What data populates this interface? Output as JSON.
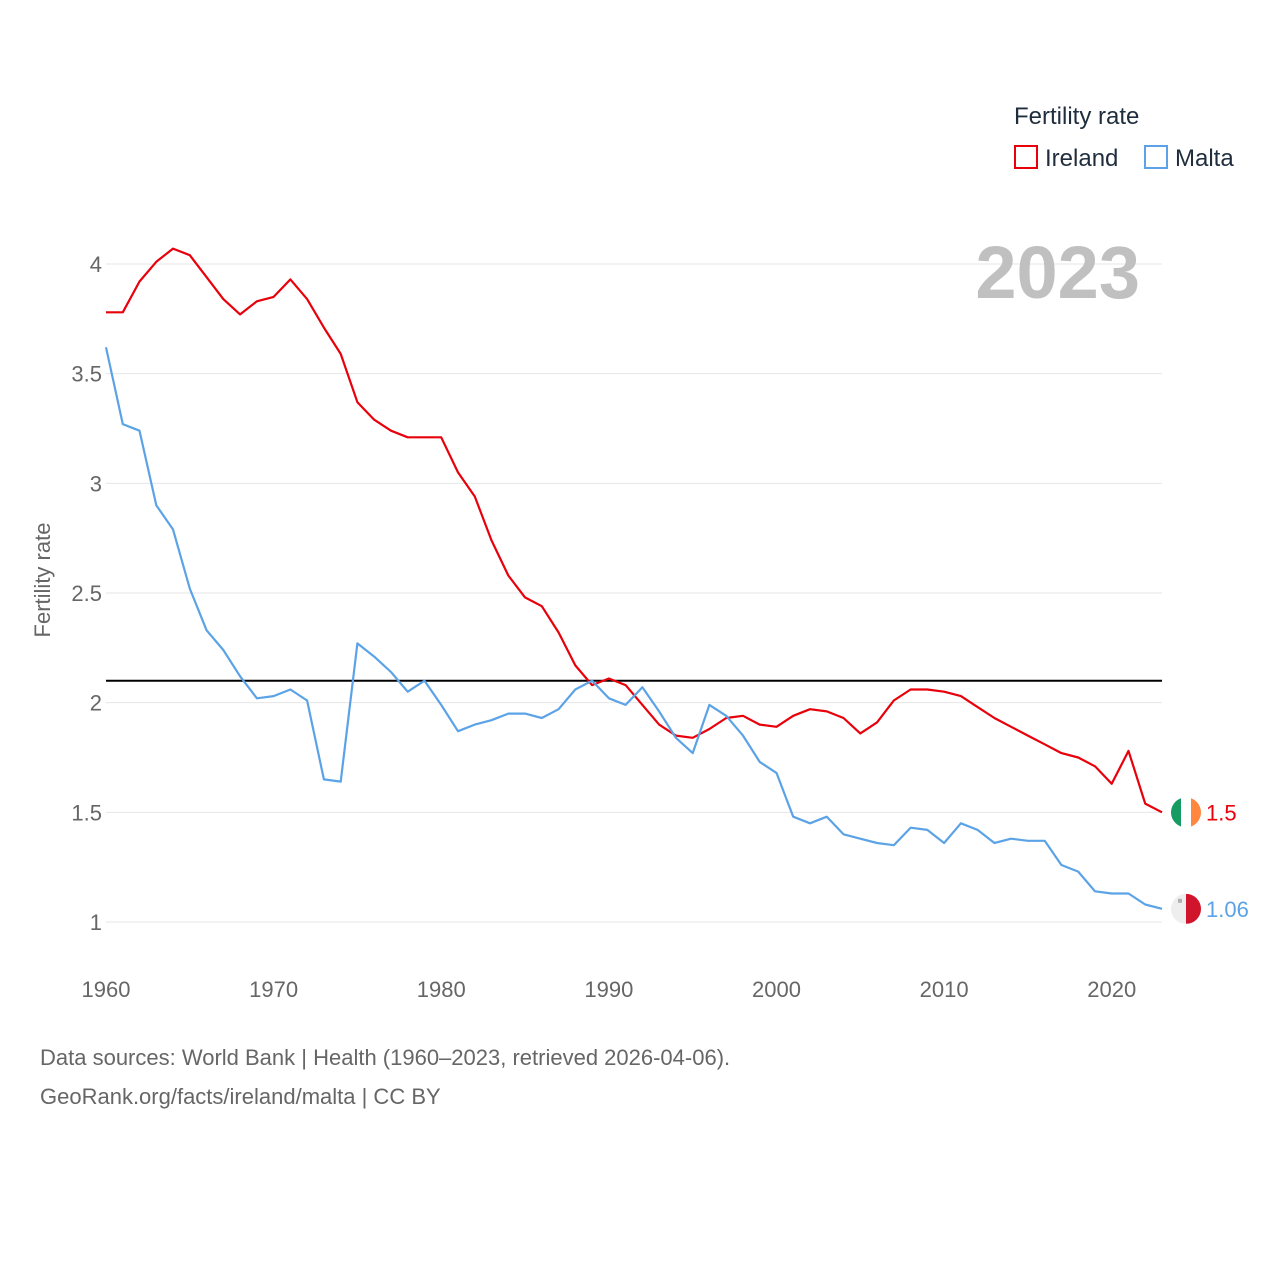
{
  "chart_data": {
    "type": "line",
    "ylabel": "Fertility rate",
    "legend_title": "Fertility rate",
    "legend_position": "top-right",
    "current_year_label": "2023",
    "ylim": [
      0.75,
      4.3
    ],
    "xlim": [
      1960,
      2023
    ],
    "y_ticks": [
      "1",
      "1.5",
      "2",
      "2.5",
      "3",
      "3.5",
      "4"
    ],
    "x_ticks": [
      "1960",
      "1970",
      "1980",
      "1990",
      "2000",
      "2010",
      "2020"
    ],
    "reference_line": 2.1,
    "grid": true,
    "x": [
      1960,
      1961,
      1962,
      1963,
      1964,
      1965,
      1966,
      1967,
      1968,
      1969,
      1970,
      1971,
      1972,
      1973,
      1974,
      1975,
      1976,
      1977,
      1978,
      1979,
      1980,
      1981,
      1982,
      1983,
      1984,
      1985,
      1986,
      1987,
      1988,
      1989,
      1990,
      1991,
      1992,
      1993,
      1994,
      1995,
      1996,
      1997,
      1998,
      1999,
      2000,
      2001,
      2002,
      2003,
      2004,
      2005,
      2006,
      2007,
      2008,
      2009,
      2010,
      2011,
      2012,
      2013,
      2014,
      2015,
      2016,
      2017,
      2018,
      2019,
      2020,
      2021,
      2022,
      2023
    ],
    "series": [
      {
        "name": "Ireland",
        "color": "#e8000b",
        "flag": "ireland-flag",
        "end_label": "1.5",
        "values": [
          3.78,
          3.78,
          3.92,
          4.01,
          4.07,
          4.04,
          3.94,
          3.84,
          3.77,
          3.83,
          3.85,
          3.93,
          3.84,
          3.71,
          3.59,
          3.37,
          3.29,
          3.24,
          3.21,
          3.21,
          3.21,
          3.05,
          2.94,
          2.74,
          2.58,
          2.48,
          2.44,
          2.32,
          2.17,
          2.08,
          2.11,
          2.08,
          1.99,
          1.9,
          1.85,
          1.84,
          1.88,
          1.93,
          1.94,
          1.9,
          1.89,
          1.94,
          1.97,
          1.96,
          1.93,
          1.86,
          1.91,
          2.01,
          2.06,
          2.06,
          2.05,
          2.03,
          1.98,
          1.93,
          1.89,
          1.85,
          1.81,
          1.77,
          1.75,
          1.71,
          1.63,
          1.78,
          1.54,
          1.5
        ]
      },
      {
        "name": "Malta",
        "color": "#5ba3e6",
        "flag": "malta-flag",
        "end_label": "1.06",
        "values": [
          3.62,
          3.27,
          3.24,
          2.9,
          2.79,
          2.52,
          2.33,
          2.24,
          2.12,
          2.02,
          2.03,
          2.06,
          2.01,
          1.65,
          1.64,
          2.27,
          2.21,
          2.14,
          2.05,
          2.1,
          1.99,
          1.87,
          1.9,
          1.92,
          1.95,
          1.95,
          1.93,
          1.97,
          2.06,
          2.1,
          2.02,
          1.99,
          2.07,
          1.96,
          1.84,
          1.77,
          1.99,
          1.94,
          1.85,
          1.73,
          1.68,
          1.48,
          1.45,
          1.48,
          1.4,
          1.38,
          1.36,
          1.35,
          1.43,
          1.42,
          1.36,
          1.45,
          1.42,
          1.36,
          1.38,
          1.37,
          1.37,
          1.26,
          1.23,
          1.14,
          1.13,
          1.13,
          1.08,
          1.06
        ]
      }
    ]
  },
  "footer": {
    "line1": "Data sources: World Bank | Health (1960–2023, retrieved 2026-04-06).",
    "line2": "GeoRank.org/facts/ireland/malta | CC BY"
  }
}
